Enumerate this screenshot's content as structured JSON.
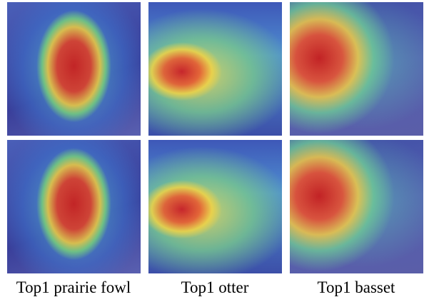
{
  "figure": {
    "captions": [
      "Top1 prairie fowl",
      "Top1 otter",
      "Top1 basset"
    ]
  }
}
